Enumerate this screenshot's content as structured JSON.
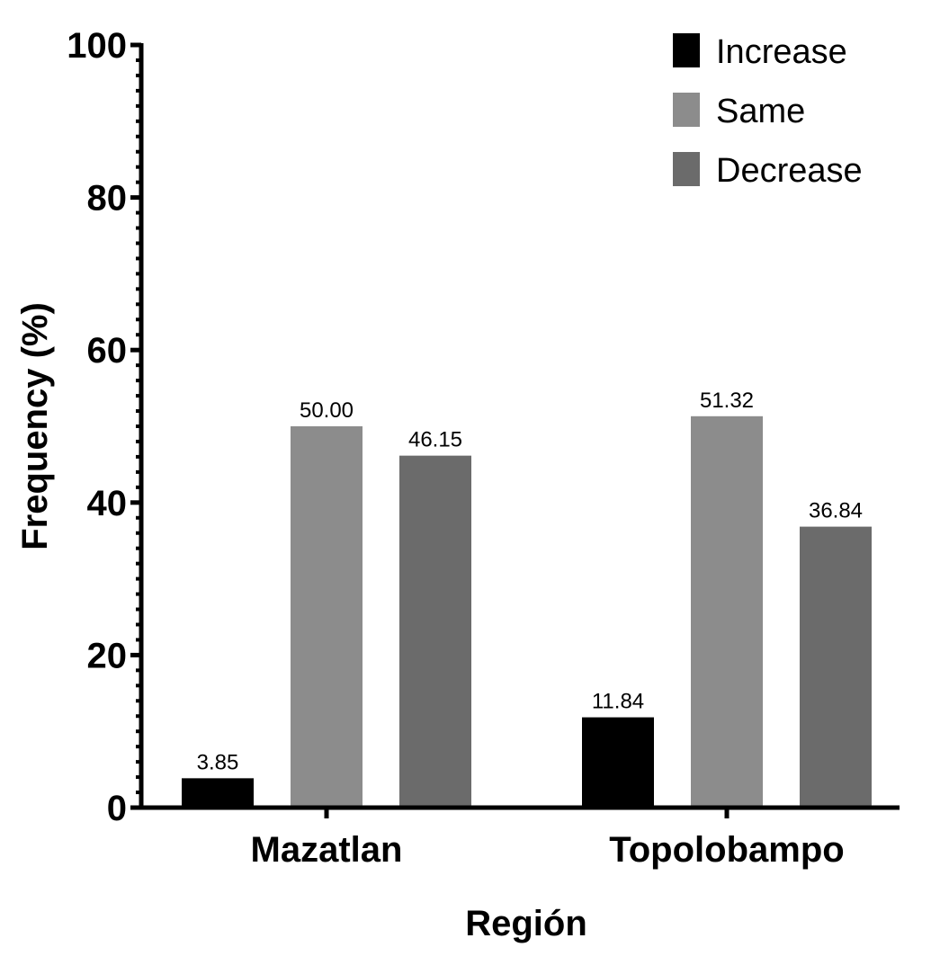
{
  "chart_data": {
    "type": "bar",
    "title": "",
    "xlabel": "Región",
    "ylabel": "Frequency (%)",
    "ylim": [
      0,
      100
    ],
    "yticks": [
      "0",
      "20",
      "40",
      "60",
      "80",
      "100"
    ],
    "minor_tick_step": 2,
    "grid": false,
    "legend_position": "top-right",
    "categories": [
      "Mazatlan",
      "Topolobampo"
    ],
    "series": [
      {
        "name": "Increase",
        "color": "#000000",
        "values": [
          3.85,
          11.84
        ],
        "labels": [
          "3.85",
          "11.84"
        ]
      },
      {
        "name": "Same",
        "color": "#8c8c8c",
        "values": [
          50.0,
          51.32
        ],
        "labels": [
          "50.00",
          "51.32"
        ]
      },
      {
        "name": "Decrease",
        "color": "#6b6b6b",
        "values": [
          46.15,
          36.84
        ],
        "labels": [
          "46.15",
          "36.84"
        ]
      }
    ]
  }
}
